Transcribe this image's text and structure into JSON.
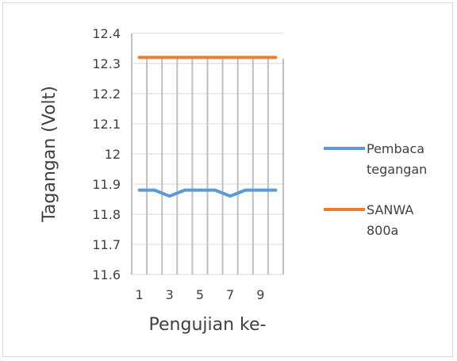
{
  "chart_data": {
    "type": "line",
    "title": "",
    "xlabel": "Pengujian ke-",
    "ylabel": "Tagangan (Volt)",
    "ylim": [
      11.6,
      12.4
    ],
    "y_ticks": [
      "11.6",
      "11.7",
      "11.8",
      "11.9",
      "12",
      "12.1",
      "12.2",
      "12.3",
      "12.4"
    ],
    "x": [
      1,
      2,
      3,
      4,
      5,
      6,
      7,
      8,
      9,
      10
    ],
    "x_tick_labels": [
      "1",
      "3",
      "5",
      "7",
      "9"
    ],
    "grid": "horizontal and vertical",
    "legend_position": "right",
    "series": [
      {
        "name": "Pembaca tegangan",
        "legend_lines": [
          "Pembaca",
          "tegangan"
        ],
        "color": "#5b9bd5",
        "values": [
          11.88,
          11.88,
          11.86,
          11.88,
          11.88,
          11.88,
          11.86,
          11.88,
          11.88,
          11.88
        ]
      },
      {
        "name": "SANWA 800a",
        "legend_lines": [
          "SANWA",
          "800a"
        ],
        "color": "#ed7d31",
        "values": [
          12.32,
          12.32,
          12.32,
          12.32,
          12.32,
          12.32,
          12.32,
          12.32,
          12.32,
          12.32
        ]
      }
    ]
  }
}
